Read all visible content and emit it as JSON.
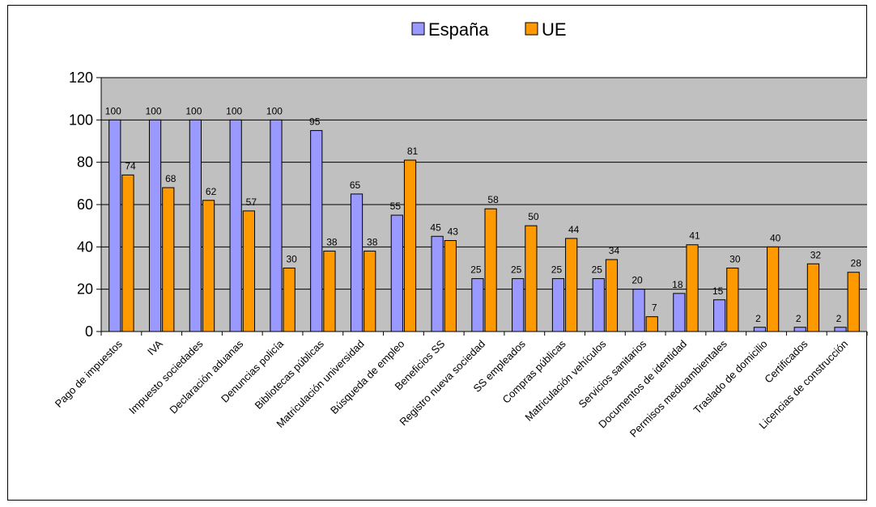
{
  "chart_data": {
    "type": "bar",
    "categories": [
      "Pago de impuestos",
      "IVA",
      "Impuesto sociedades",
      "Declaración aduanas",
      "Denuncias policía",
      "Bibliotecas públicas",
      "Matriculación universidad",
      "Búsqueda de empleo",
      "Beneficios SS",
      "Registro nueva sociedad",
      "SS empleados",
      "Compras públicas",
      "Matriculación vehículos",
      "Servicios sanitarios",
      "Documentos de identidad",
      "Permisos medioambientales",
      "Traslado de domicilio",
      "Certificados",
      "Licencias de construcción"
    ],
    "series": [
      {
        "name": "España",
        "color": "#9999ff",
        "values": [
          100,
          100,
          100,
          100,
          100,
          95,
          65,
          55,
          45,
          25,
          25,
          25,
          25,
          20,
          18,
          15,
          2,
          2,
          2
        ]
      },
      {
        "name": "UE",
        "color": "#ff9900",
        "values": [
          74,
          68,
          62,
          57,
          30,
          38,
          38,
          81,
          43,
          58,
          50,
          44,
          34,
          7,
          41,
          30,
          40,
          32,
          28
        ]
      }
    ],
    "ylim": [
      0,
      120
    ],
    "yticks": [
      0,
      20,
      40,
      60,
      80,
      100,
      120
    ],
    "title": "",
    "xlabel": "",
    "ylabel": "",
    "grid": true,
    "legend": "top-center",
    "plot_background": "#c0c0c0"
  }
}
